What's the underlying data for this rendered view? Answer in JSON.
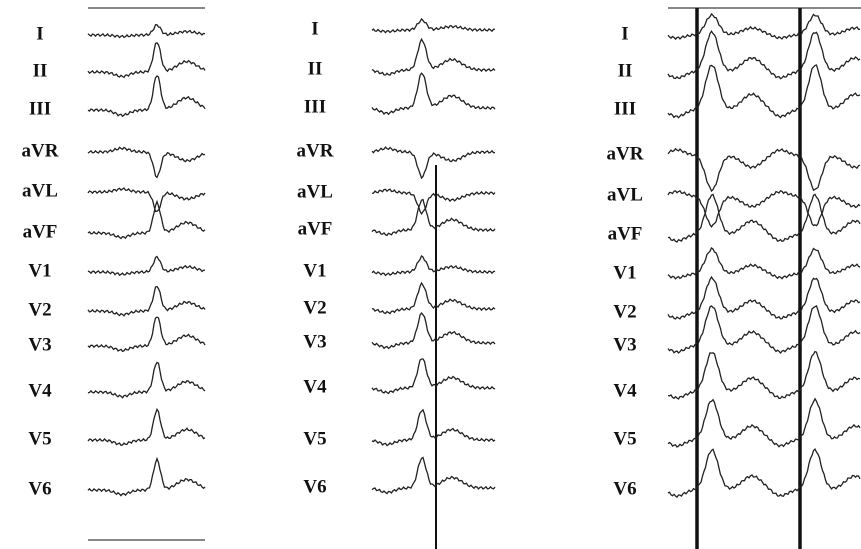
{
  "panels": [
    {
      "leads": [
        "I",
        "II",
        "III",
        "aVR",
        "aVL",
        "aVF",
        "V1",
        "V2",
        "V3",
        "V4",
        "V5",
        "V6"
      ]
    },
    {
      "leads": [
        "I",
        "II",
        "III",
        "aVR",
        "aVL",
        "aVF",
        "V1",
        "V2",
        "V3",
        "V4",
        "V5",
        "V6"
      ]
    },
    {
      "leads": [
        "I",
        "II",
        "III",
        "aVR",
        "aVL",
        "aVF",
        "V1",
        "V2",
        "V3",
        "V4",
        "V5",
        "V6"
      ]
    }
  ]
}
